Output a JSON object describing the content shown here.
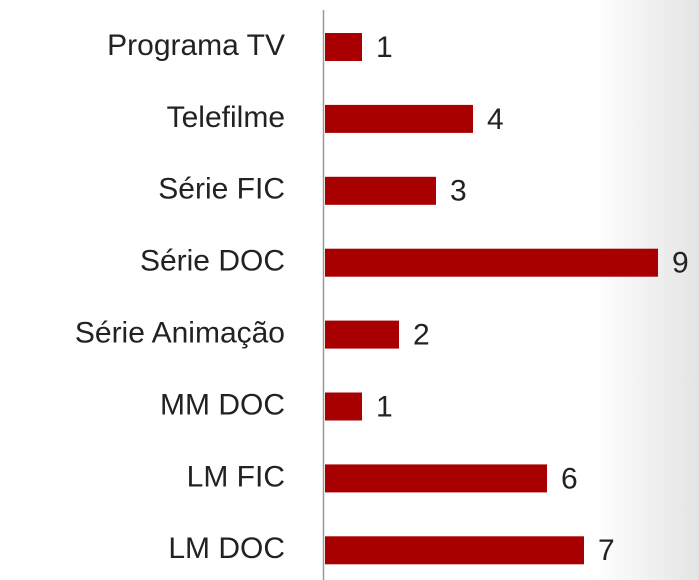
{
  "chart_data": {
    "type": "barh",
    "categories": [
      "Programa TV",
      "Telefilme",
      "Série FIC",
      "Série DOC",
      "Série Animação",
      "MM DOC",
      "LM FIC",
      "LM DOC"
    ],
    "values": [
      1,
      4,
      3,
      9,
      2,
      1,
      6,
      7
    ],
    "color": "#a80000"
  }
}
